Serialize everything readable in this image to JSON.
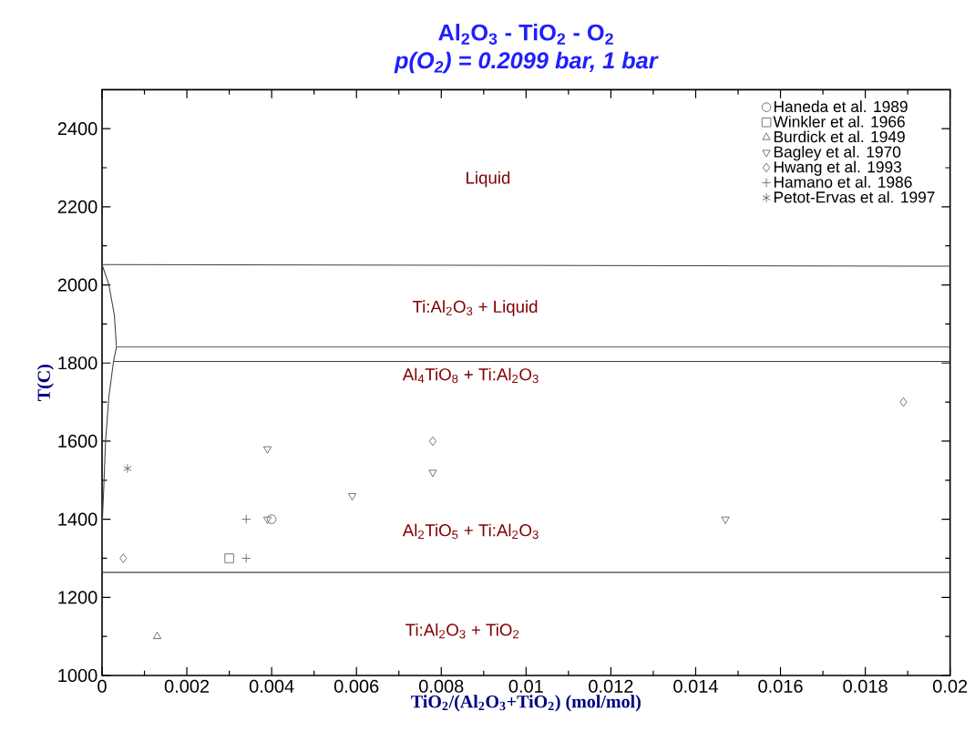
{
  "chart_data": {
    "type": "scatter",
    "title": "Al$_{2}$O$_{3}$ - TiO$_{2}$ - O$_{2}$",
    "subtitle": "p(O$_{2}$) = 0.2099 bar, 1 bar",
    "xlabel": "TiO$_{2}$/(Al$_{2}$O$_{3}$+TiO$_{2}$) (mol/mol)",
    "ylabel": "T(C)",
    "xlim": [
      0,
      0.02
    ],
    "ylim": [
      1000,
      2500
    ],
    "xticks": [
      0,
      0.002,
      0.004,
      0.006,
      0.008,
      0.01,
      0.012,
      0.014,
      0.016,
      0.018,
      0.02
    ],
    "yticks": [
      1000,
      1200,
      1400,
      1600,
      1800,
      2000,
      2200,
      2400
    ],
    "grid": false,
    "legend": "top right",
    "series": [
      {
        "type": "line",
        "color": "#404040",
        "marker": "none",
        "line_style": "solid",
        "x": [
          0,
          0.02
        ],
        "values": [
          2052,
          2048
        ]
      },
      {
        "type": "line",
        "color": "#404040",
        "marker": "none",
        "line_style": "solid",
        "x": [
          0.00034,
          0.02
        ],
        "values": [
          1841,
          1841
        ]
      },
      {
        "type": "line",
        "color": "#404040",
        "marker": "none",
        "line_style": "solid",
        "x": [
          0.00027,
          0.02
        ],
        "values": [
          1804,
          1804
        ]
      },
      {
        "type": "line",
        "color": "#404040",
        "marker": "none",
        "line_style": "solid",
        "x": [
          0,
          0.02
        ],
        "values": [
          1264,
          1264
        ]
      },
      {
        "type": "line",
        "color": "#404040",
        "marker": "none",
        "line_style": "solid",
        "x": [
          0,
          0.00016,
          0.00029,
          0.00034,
          0.00027,
          0.00016,
          8e-05,
          4e-05,
          1e-05,
          0
        ],
        "values": [
          2052,
          2001,
          1923,
          1841,
          1804,
          1713,
          1596,
          1479,
          1402,
          1264
        ]
      },
      {
        "name": "Haneda et al. 1989",
        "color": "#555555",
        "marker": "circle",
        "x": [
          0.004
        ],
        "values": [
          1400
        ]
      },
      {
        "name": "Winkler et al. 1966",
        "color": "#555555",
        "marker": "square",
        "x": [
          0.003
        ],
        "values": [
          1300
        ]
      },
      {
        "name": "Burdick et al. 1949",
        "color": "#555555",
        "marker": "triangle",
        "x": [
          0.0013
        ],
        "values": [
          1100
        ]
      },
      {
        "name": "Bagley et al. 1970",
        "color": "#555555",
        "marker": "triangle-down",
        "x": [
          0.0039,
          0.0039,
          0.0059,
          0.0078,
          0.0147
        ],
        "values": [
          1580,
          1400,
          1460,
          1520,
          1400
        ]
      },
      {
        "name": "Hwang et al. 1993",
        "color": "#555555",
        "marker": "diamond",
        "x": [
          0.0005,
          0.0078,
          0.0189
        ],
        "values": [
          1300,
          1600,
          1700
        ]
      },
      {
        "name": "Hamano et al. 1986",
        "color": "#555555",
        "marker": "plus",
        "x": [
          0.0034,
          0.0034
        ],
        "values": [
          1400,
          1300
        ]
      },
      {
        "name": "Petot-Ervas et al. 1997",
        "color": "#555555",
        "marker": "cross",
        "x": [
          0.0006
        ],
        "values": [
          1530
        ]
      }
    ],
    "annotations": [
      "Liquid",
      "Ti:Al$_{2}$O$_{3}$  + Liquid",
      "Al$_{4}$TiO$_{8}$ + Ti:Al$_{2}$O$_{3}$",
      "Al$_{2}$TiO$_{5}$ + Ti:Al$_{2}$O$_{3}$",
      "Ti:Al$_{2}$O$_{3}$  + TiO$_{2}$"
    ]
  }
}
